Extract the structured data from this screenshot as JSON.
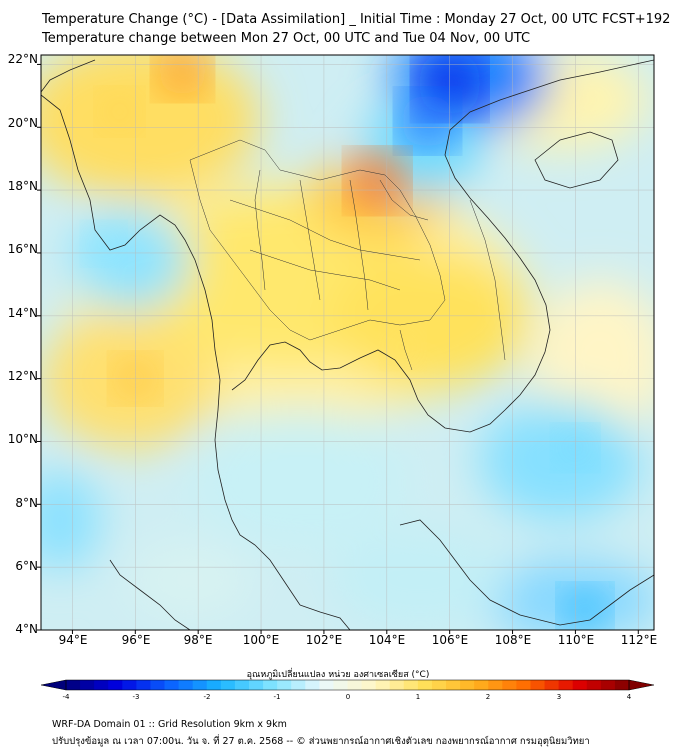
{
  "header": {
    "title_line1": "Temperature Change (°C) - [Data Assimilation] _ Initial Time : Monday 27 Oct, 00 UTC FCST+192",
    "title_line2": "Temperature change between Mon 27 Oct, 00 UTC and Tue 04 Nov, 00 UTC"
  },
  "map": {
    "lat_labels": [
      "22°N",
      "20°N",
      "18°N",
      "16°N",
      "14°N",
      "12°N",
      "10°N",
      "8°N",
      "6°N",
      "4°N"
    ],
    "lon_labels": [
      "94°E",
      "96°E",
      "98°E",
      "100°E",
      "102°E",
      "104°E",
      "106°E",
      "108°E",
      "110°E",
      "112°E"
    ],
    "lat_range": [
      4,
      22.3
    ],
    "lon_range": [
      93,
      112.5
    ],
    "hotspots": [
      {
        "lon": 106.0,
        "lat": 21.4,
        "value": -3.2
      },
      {
        "lon": 105.3,
        "lat": 20.2,
        "value": -2.5
      },
      {
        "lon": 103.7,
        "lat": 18.3,
        "value": 2.6
      },
      {
        "lon": 97.5,
        "lat": 21.8,
        "value": 2.2
      },
      {
        "lon": 96.0,
        "lat": 12.0,
        "value": 1.6
      },
      {
        "lon": 95.5,
        "lat": 20.5,
        "value": 1.3
      },
      {
        "lon": 110.3,
        "lat": 4.6,
        "value": -1.8
      },
      {
        "lon": 95.0,
        "lat": 16.3,
        "value": -1.0
      },
      {
        "lon": 110.0,
        "lat": 9.8,
        "value": -1.2
      },
      {
        "lon": 104.5,
        "lat": 13.0,
        "value": 1.0
      }
    ]
  },
  "colorbar": {
    "label": "อุณหภูมิเปลี่ยนแปลง หน่วย องศาเซลเซียส (°C)",
    "ticks": [
      "-4",
      "-3",
      "-2",
      "-1",
      "0",
      "1",
      "2",
      "3",
      "4"
    ],
    "min": -4,
    "max": 4,
    "colors": [
      "#00007a",
      "#0000e0",
      "#0a60ff",
      "#1ab4ff",
      "#7ee3ff",
      "#e9f8fb",
      "#fff7c8",
      "#ffe05a",
      "#ffb21f",
      "#ff6a00",
      "#e00000",
      "#800000"
    ]
  },
  "footer": {
    "line1": "WRF-DA Domain 01 :: Grid Resolution 9km x 9km",
    "line2": "ปรับปรุงข้อมูล ณ เวลา 07:00น. วัน จ. ที่ 27 ต.ค. 2568 -- © ส่วนพยากรณ์อากาศเชิงตัวเลข กองพยากรณ์อากาศ กรมอุตุนิยมวิทยา"
  }
}
